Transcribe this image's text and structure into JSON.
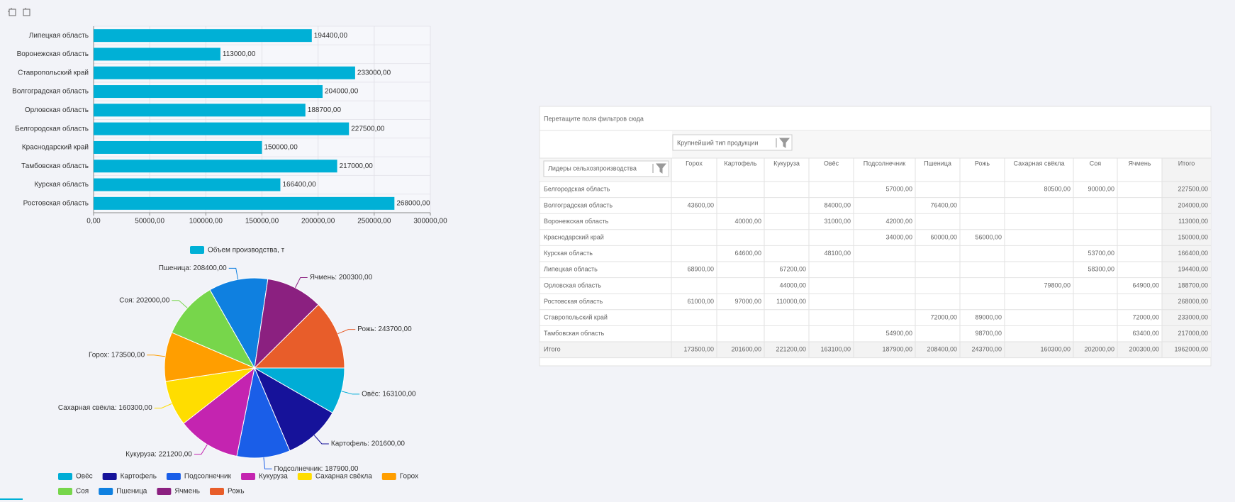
{
  "chart_data": [
    {
      "type": "bar",
      "orientation": "horizontal",
      "categories": [
        "Липецкая область",
        "Воронежская область",
        "Ставропольский край",
        "Волгоградская область",
        "Орловская область",
        "Белгородская область",
        "Краснодарский край",
        "Тамбовская область",
        "Курская область",
        "Ростовская область"
      ],
      "series": [
        {
          "name": "Объем производства, т",
          "color": "#00b0d6",
          "values": [
            194400,
            113000,
            233000,
            204000,
            188700,
            227500,
            150000,
            217000,
            166400,
            268000
          ],
          "value_labels": [
            "194400,00",
            "113000,00",
            "233000,00",
            "204000,00",
            "188700,00",
            "227500,00",
            "150000,00",
            "217000,00",
            "166400,00",
            "268000,00"
          ]
        }
      ],
      "xlim": [
        0,
        300000
      ],
      "xticks": [
        {
          "value": 0,
          "label": "0,00"
        },
        {
          "value": 50000,
          "label": "50000,00"
        },
        {
          "value": 100000,
          "label": "100000,00"
        },
        {
          "value": 150000,
          "label": "150000,00"
        },
        {
          "value": 200000,
          "label": "200000,00"
        },
        {
          "value": 250000,
          "label": "250000,00"
        },
        {
          "value": 300000,
          "label": "300000,00"
        }
      ],
      "grid": true,
      "legend": "bottom"
    },
    {
      "type": "pie",
      "categories": [
        "Овёс",
        "Картофель",
        "Подсолнечник",
        "Кукуруза",
        "Сахарная свёкла",
        "Горох",
        "Соя",
        "Пшеница",
        "Ячмень",
        "Рожь"
      ],
      "values": [
        163100,
        201600,
        187900,
        221200,
        160300,
        173500,
        202000,
        208400,
        200300,
        243700
      ],
      "value_labels": [
        "Овёс: 163100,00",
        "Картофель: 201600,00",
        "Подсолнечник: 187900,00",
        "Кукуруза: 221200,00",
        "Сахарная свёкла: 160300,00",
        "Горох: 173500,00",
        "Соя: 202000,00",
        "Пшеница: 208400,00",
        "Ячмень: 200300,00",
        "Рожь: 243700,00"
      ],
      "colors": [
        "#00add6",
        "#16129a",
        "#1a5ee8",
        "#c424b0",
        "#ffdd00",
        "#ff9e00",
        "#77d64b",
        "#0f80e0",
        "#8b2080",
        "#e85d2a"
      ],
      "legend": "bottom"
    }
  ],
  "pivot": {
    "filter_hint": "Перетащите поля фильтров сюда",
    "column_field": "Крупнейший тип продукции",
    "row_field": "Лидеры сельхозпроизводства",
    "columns": [
      "Горох",
      "Картофель",
      "Кукуруза",
      "Овёс",
      "Подсолнечник",
      "Пшеница",
      "Рожь",
      "Сахарная свёкла",
      "Соя",
      "Ячмень",
      "Итого"
    ],
    "rows": [
      {
        "label": "Белгородская область",
        "cells": [
          null,
          null,
          null,
          null,
          "57000,00",
          null,
          null,
          "80500,00",
          "90000,00",
          null,
          "227500,00"
        ]
      },
      {
        "label": "Волгоградская область",
        "cells": [
          "43600,00",
          null,
          null,
          "84000,00",
          null,
          "76400,00",
          null,
          null,
          null,
          null,
          "204000,00"
        ]
      },
      {
        "label": "Воронежская область",
        "cells": [
          null,
          "40000,00",
          null,
          "31000,00",
          "42000,00",
          null,
          null,
          null,
          null,
          null,
          "113000,00"
        ]
      },
      {
        "label": "Краснодарский край",
        "cells": [
          null,
          null,
          null,
          null,
          "34000,00",
          "60000,00",
          "56000,00",
          null,
          null,
          null,
          "150000,00"
        ]
      },
      {
        "label": "Курская область",
        "cells": [
          null,
          "64600,00",
          null,
          "48100,00",
          null,
          null,
          null,
          null,
          "53700,00",
          null,
          "166400,00"
        ]
      },
      {
        "label": "Липецкая область",
        "cells": [
          "68900,00",
          null,
          "67200,00",
          null,
          null,
          null,
          null,
          null,
          "58300,00",
          null,
          "194400,00"
        ]
      },
      {
        "label": "Орловская область",
        "cells": [
          null,
          null,
          "44000,00",
          null,
          null,
          null,
          null,
          "79800,00",
          null,
          "64900,00",
          "188700,00"
        ]
      },
      {
        "label": "Ростовская область",
        "cells": [
          "61000,00",
          "97000,00",
          "110000,00",
          null,
          null,
          null,
          null,
          null,
          null,
          null,
          "268000,00"
        ]
      },
      {
        "label": "Ставропольский край",
        "cells": [
          null,
          null,
          null,
          null,
          null,
          "72000,00",
          "89000,00",
          null,
          null,
          "72000,00",
          "233000,00"
        ]
      },
      {
        "label": "Тамбовская область",
        "cells": [
          null,
          null,
          null,
          null,
          "54900,00",
          null,
          "98700,00",
          null,
          null,
          "63400,00",
          "217000,00"
        ]
      }
    ],
    "total": {
      "label": "Итого",
      "cells": [
        "173500,00",
        "201600,00",
        "221200,00",
        "163100,00",
        "187900,00",
        "208400,00",
        "243700,00",
        "160300,00",
        "202000,00",
        "200300,00",
        "1962000,00"
      ]
    }
  }
}
